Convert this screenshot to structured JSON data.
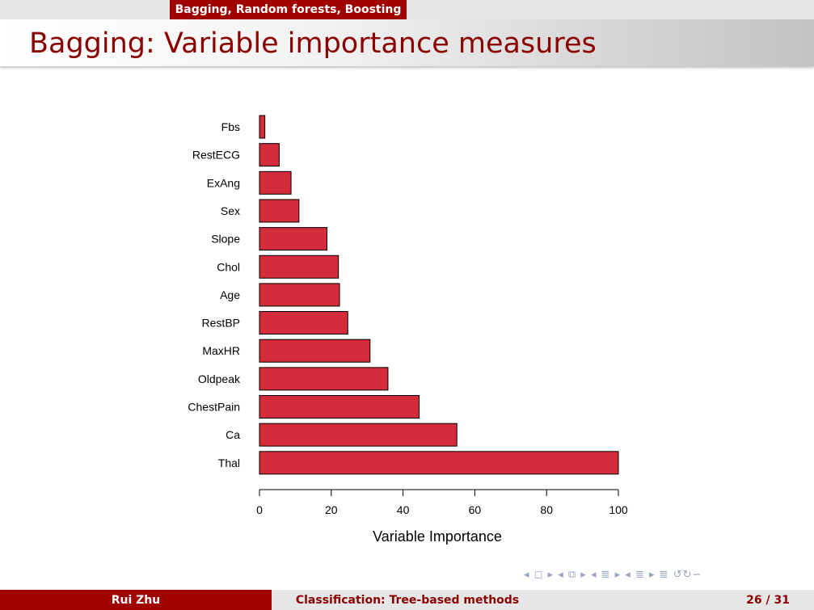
{
  "header": {
    "section": "Bagging, Random forests, Boosting",
    "title": "Bagging: Variable importance measures"
  },
  "footer": {
    "author": "Rui Zhu",
    "talk_title": "Classification: Tree-based methods",
    "page": "26 / 31"
  },
  "nav": {
    "symbols": "◂ ◻ ▸  ◂ ⧉ ▸  ◂ ≣ ▸  ◂ ≣ ▸   ≣   ↺↻∽"
  },
  "colors": {
    "bar_fill": "#d42c3a",
    "accent": "#a00000"
  },
  "chart_data": {
    "type": "bar",
    "orientation": "horizontal",
    "categories": [
      "Fbs",
      "RestECG",
      "ExAng",
      "Sex",
      "Slope",
      "Chol",
      "Age",
      "RestBP",
      "MaxHR",
      "Oldpeak",
      "ChestPain",
      "Ca",
      "Thal"
    ],
    "values": [
      1.5,
      5.5,
      8.8,
      11,
      18.8,
      22,
      22.3,
      24.6,
      30.8,
      35.8,
      44.5,
      55,
      100
    ],
    "xlabel": "Variable Importance",
    "ylabel": "",
    "xlim": [
      0,
      100
    ],
    "xticks": [
      0,
      20,
      40,
      60,
      80,
      100
    ],
    "grid": false
  }
}
